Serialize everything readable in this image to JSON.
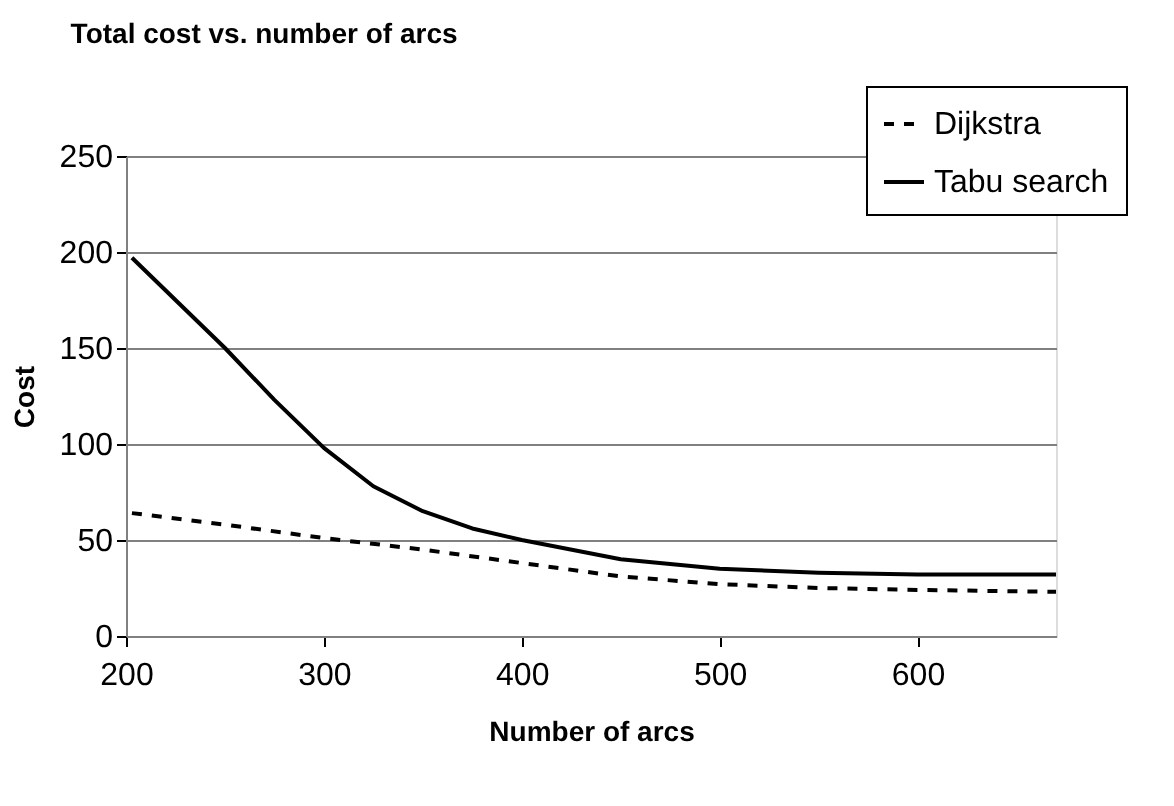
{
  "chart_data": {
    "type": "line",
    "title": "Total cost vs. number of arcs",
    "xlabel": "Number of arcs",
    "ylabel": "Cost",
    "xlim": [
      200,
      670
    ],
    "xticks": [
      200,
      300,
      400,
      500,
      600
    ],
    "ylim": [
      0,
      250
    ],
    "yticks": [
      0,
      50,
      100,
      150,
      200,
      250
    ],
    "grid": "y",
    "legend": "top right",
    "marker": "none",
    "series": [
      {
        "name": "Dijkstra",
        "color": "#000000",
        "line_style": "dashed",
        "x": [
          203,
          250,
          300,
          350,
          400,
          450,
          500,
          550,
          600,
          670
        ],
        "values": [
          64,
          58,
          51,
          45,
          38,
          31,
          27,
          25,
          24,
          23
        ]
      },
      {
        "name": "Tabu search",
        "color": "#000000",
        "line_style": "solid",
        "x": [
          203,
          225,
          250,
          275,
          300,
          325,
          350,
          375,
          400,
          450,
          500,
          550,
          600,
          670
        ],
        "values": [
          197,
          175,
          150,
          123,
          98,
          78,
          65,
          56,
          50,
          40,
          35,
          33,
          32,
          32
        ]
      }
    ]
  }
}
